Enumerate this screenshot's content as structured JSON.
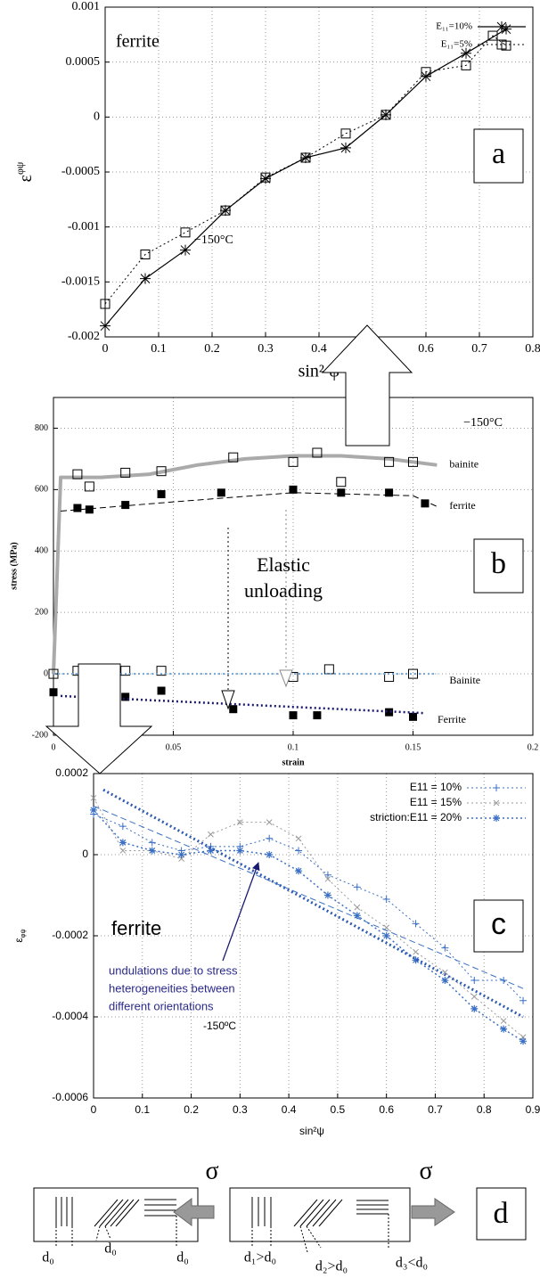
{
  "chart_data": [
    {
      "type": "line",
      "panel": "a",
      "xlabel": "sin² ψ",
      "ylabel": {
        "base": "ε",
        "sup": "φψ"
      },
      "annotations": [
        "ferrite",
        "−150°C"
      ],
      "xlim": [
        0,
        0.8
      ],
      "xticks": [
        0,
        0.1,
        0.2,
        0.3,
        0.4,
        0.5,
        0.6,
        0.7,
        0.8
      ],
      "ylim": [
        -0.002,
        0.001
      ],
      "yticks": [
        -0.002,
        -0.0015,
        -0.001,
        -0.0005,
        0,
        0.0005,
        0.001
      ],
      "grid": true,
      "legend": "top-right",
      "series": [
        {
          "name": "E₁₁=10%",
          "color": "#000000",
          "line": "solid",
          "width": 1.2,
          "marker": "star",
          "x": [
            0,
            0.075,
            0.15,
            0.225,
            0.3,
            0.375,
            0.45,
            0.525,
            0.6,
            0.675,
            0.75
          ],
          "values": [
            -0.0019,
            -0.00147,
            -0.00121,
            -0.00085,
            -0.00056,
            -0.00037,
            -0.00028,
            2e-05,
            0.00037,
            0.00058,
            0.0008
          ]
        },
        {
          "name": "E₁₁=5%",
          "color": "#000000",
          "line": "dotted",
          "width": 1,
          "marker": "square",
          "x": [
            0,
            0.075,
            0.15,
            0.225,
            0.3,
            0.375,
            0.45,
            0.525,
            0.6,
            0.675,
            0.725,
            0.75
          ],
          "values": [
            -0.0017,
            -0.00125,
            -0.00105,
            -0.00085,
            -0.00055,
            -0.00037,
            -0.00015,
            2e-05,
            0.00041,
            0.00047,
            0.00074,
            0.00065
          ]
        }
      ]
    },
    {
      "type": "line",
      "panel": "b",
      "xlabel": "strain",
      "ylabel": "stress (MPa)",
      "annotations": [
        "−150°C",
        "Elastic",
        "unloading"
      ],
      "xlim": [
        0,
        0.2
      ],
      "xticks": [
        0,
        0.05,
        0.1,
        0.15,
        0.2
      ],
      "ylim": [
        -200,
        900
      ],
      "yticks": [
        -200,
        0,
        200,
        400,
        600,
        800
      ],
      "grid": true,
      "legend": "inline",
      "series": [
        {
          "name": "bainite",
          "color": "#aaaaaa",
          "line": "solid",
          "width": 4,
          "marker": "none",
          "x": [
            0,
            0.003,
            0.02,
            0.04,
            0.06,
            0.08,
            0.1,
            0.12,
            0.14,
            0.16
          ],
          "values": [
            0,
            640,
            640,
            650,
            680,
            700,
            710,
            710,
            700,
            680
          ]
        },
        {
          "name": "ferrite",
          "color": "#000000",
          "line": "dashed",
          "width": 1,
          "marker": "none",
          "x": [
            0.003,
            0.05,
            0.1,
            0.15,
            0.16
          ],
          "values": [
            530,
            560,
            590,
            580,
            545
          ]
        },
        {
          "color": "#000000",
          "line": "none",
          "width": 1,
          "marker": "square",
          "x": [
            0.01,
            0.015,
            0.03,
            0.045,
            0.075,
            0.1,
            0.11,
            0.12,
            0.14,
            0.15
          ],
          "values": [
            650,
            610,
            655,
            660,
            705,
            690,
            720,
            625,
            690,
            690
          ]
        },
        {
          "color": "#000000",
          "line": "none",
          "width": 1,
          "marker": "filled-square",
          "x": [
            0.01,
            0.015,
            0.03,
            0.045,
            0.07,
            0.1,
            0.12,
            0.14,
            0.155
          ],
          "values": [
            540,
            535,
            550,
            585,
            590,
            600,
            590,
            590,
            555
          ]
        },
        {
          "color": "#000000",
          "line": "none",
          "width": 1,
          "marker": "square",
          "x": [
            0,
            0.01,
            0.015,
            0.03,
            0.045,
            0.1,
            0.115,
            0.14,
            0.15
          ],
          "values": [
            0,
            10,
            -10,
            10,
            10,
            -10,
            15,
            -10,
            0
          ]
        },
        {
          "color": "#000000",
          "line": "none",
          "width": 1,
          "marker": "filled-square",
          "x": [
            0,
            0.015,
            0.03,
            0.045,
            0.075,
            0.1,
            0.11,
            0.14,
            0.15
          ],
          "values": [
            -60,
            -80,
            -75,
            -55,
            -115,
            -135,
            -135,
            -125,
            -140
          ]
        },
        {
          "name": "Bainite",
          "color": "#6fa8dc",
          "line": "dotted",
          "width": 2,
          "marker": "none",
          "x": [
            0,
            0.16
          ],
          "values": [
            0,
            0
          ]
        },
        {
          "name": "Ferrite",
          "color": "#1a1a70",
          "line": "dotted",
          "width": 2.5,
          "marker": "none",
          "x": [
            0.003,
            0.155
          ],
          "values": [
            -72,
            -128
          ]
        }
      ]
    },
    {
      "type": "line",
      "panel": "c",
      "xlabel": "sin²ψ",
      "ylabel": {
        "base": "ε",
        "sub": "φψ"
      },
      "annotations": [
        "ferrite",
        "undulations due to stress",
        "heterogeneities between",
        "different orientations",
        "-150ºC"
      ],
      "xlim": [
        0,
        0.9
      ],
      "xticks": [
        0,
        0.1,
        0.2,
        0.3,
        0.4,
        0.5,
        0.6,
        0.7,
        0.8,
        0.9
      ],
      "ylim": [
        -0.0006,
        0.0002
      ],
      "yticks": [
        -0.0006,
        -0.0004,
        -0.0002,
        0,
        0.0002
      ],
      "grid": true,
      "legend": "top-right",
      "series": [
        {
          "name": "E11 = 10%",
          "color": "#3a6fc4",
          "line": "dotted",
          "width": 1,
          "marker": "plus",
          "x": [
            0,
            0.06,
            0.12,
            0.18,
            0.24,
            0.3,
            0.36,
            0.42,
            0.48,
            0.54,
            0.6,
            0.66,
            0.72,
            0.78,
            0.84,
            0.88
          ],
          "values": [
            0.0001,
            7e-05,
            3e-05,
            1e-05,
            2e-05,
            2e-05,
            4e-05,
            1e-05,
            -5e-05,
            -8e-05,
            -0.00011,
            -0.00017,
            -0.00023,
            -0.00031,
            -0.00031,
            -0.00036
          ]
        },
        {
          "name": "E11 = 15%",
          "color": "#999999",
          "line": "dotted",
          "width": 1,
          "marker": "x",
          "x": [
            0,
            0.06,
            0.12,
            0.18,
            0.24,
            0.3,
            0.36,
            0.42,
            0.48,
            0.54,
            0.6,
            0.66,
            0.72,
            0.78,
            0.84,
            0.88
          ],
          "values": [
            0.00014,
            1e-05,
            1e-05,
            -1e-05,
            5e-05,
            8e-05,
            8e-05,
            4e-05,
            -6e-05,
            -0.00013,
            -0.00018,
            -0.00024,
            -0.00029,
            -0.00035,
            -0.00041,
            -0.00045
          ]
        },
        {
          "name": "striction:E11 = 20%",
          "color": "#3a6fc4",
          "line": "dotted",
          "width": 1.5,
          "marker": "asterisk",
          "x": [
            0,
            0.06,
            0.12,
            0.18,
            0.24,
            0.3,
            0.36,
            0.42,
            0.48,
            0.54,
            0.6,
            0.66,
            0.72,
            0.78,
            0.84,
            0.88
          ],
          "values": [
            0.00011,
            3e-05,
            1e-05,
            0,
            1e-05,
            1e-05,
            0,
            -4e-05,
            -0.0001,
            -0.00015,
            -0.0002,
            -0.00026,
            -0.00031,
            -0.00038,
            -0.00043,
            -0.00046
          ]
        },
        {
          "color": "#2e5bb0",
          "line": "dotted",
          "width": 3,
          "marker": "none",
          "x": [
            0.02,
            0.88
          ],
          "values": [
            0.00016,
            -0.0004
          ]
        },
        {
          "color": "#3a6fc4",
          "line": "dashed",
          "width": 1,
          "marker": "none",
          "x": [
            0,
            0.88
          ],
          "values": [
            0.00012,
            -0.00033
          ]
        }
      ]
    }
  ],
  "panel_d": {
    "sigma_left": "σ",
    "sigma_right": "σ",
    "label": "d",
    "left_labels": [
      "d₀",
      "d₀",
      "d₀"
    ],
    "right_labels": [
      "d₁>d₀",
      "d₂>d₀",
      "d₃<d₀"
    ]
  }
}
